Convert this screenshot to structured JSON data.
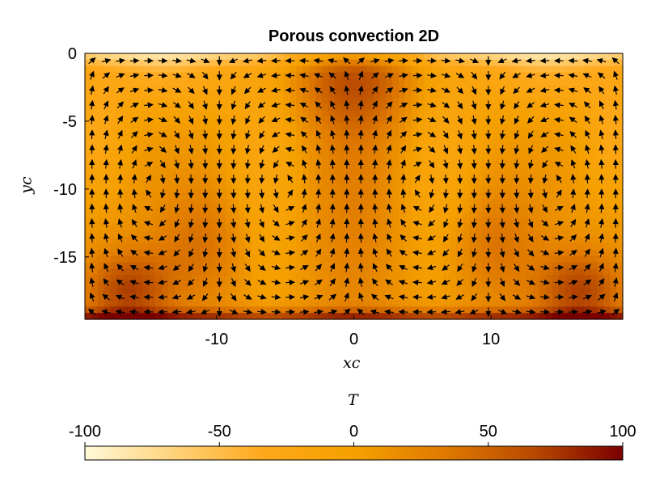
{
  "chart_data": {
    "type": "heatmap",
    "title": "Porous convection 2D",
    "xlabel": "xc",
    "ylabel": "yc",
    "xlim": [
      -19.6,
      19.6
    ],
    "ylim": [
      -19.6,
      0
    ],
    "xticks": [
      -10,
      0,
      10
    ],
    "yticks": [
      0,
      -5,
      -10,
      -15
    ],
    "colorbar": {
      "label": "T",
      "range": [
        -100,
        100
      ],
      "ticks": [
        -100,
        -50,
        0,
        50,
        100
      ],
      "colormap": [
        "#fff9d8",
        "#ffd27a",
        "#ffa81a",
        "#f5a000",
        "#e07a00",
        "#b84a00",
        "#7a0000"
      ]
    },
    "overlay": "quiver (velocity field arrows)"
  }
}
